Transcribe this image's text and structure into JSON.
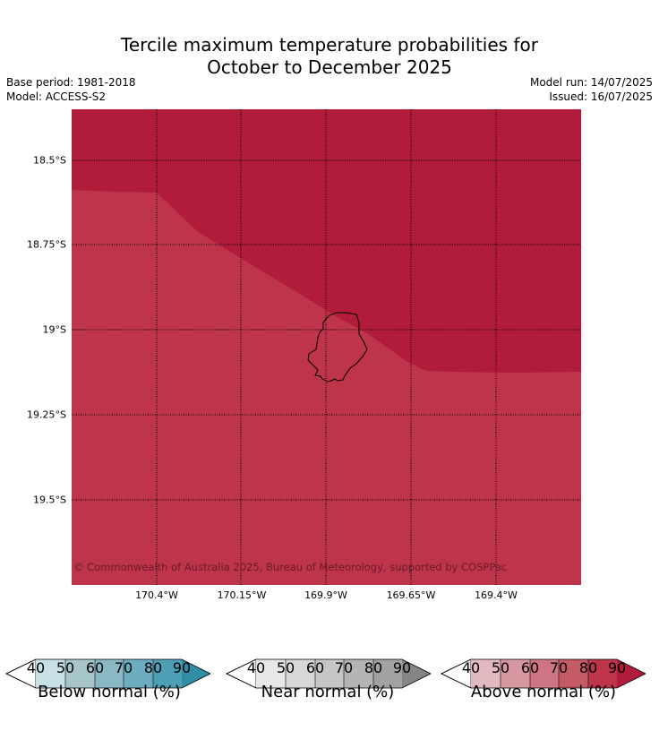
{
  "title_line1": "Tercile maximum temperature probabilities for",
  "title_line2": "October to December 2025",
  "base_period": "Base period: 1981-2018",
  "model": "Model: ACCESS-S2",
  "model_run": "Model run: 14/07/2025",
  "issued": "Issued: 16/07/2025",
  "copyright": "© Commonwealth of Australia 2025, Bureau of Meteorology, supported by COSPPac",
  "lat_labels": [
    "18.5°S",
    "18.75°S",
    "19°S",
    "19.25°S",
    "19.5°S"
  ],
  "lon_labels": [
    "170.4°W",
    "170.15°W",
    "169.9°W",
    "169.65°W",
    "169.4°W"
  ],
  "colors": {
    "above_90": "#b01c3a",
    "above_80": "#bd344b",
    "land_outline": "#000000"
  },
  "map_regions": [
    {
      "category": "Above normal",
      "probability_bin": "90",
      "location": "north-east"
    },
    {
      "category": "Above normal",
      "probability_bin": "80",
      "location": "south-west"
    }
  ],
  "colorbars": [
    {
      "label": "Below normal (%)",
      "ticks": [
        "40",
        "50",
        "60",
        "70",
        "80",
        "90"
      ],
      "colors": [
        "#c7e0e6",
        "#a6c6cc",
        "#8ab9c5",
        "#6caebf",
        "#4d9fb5",
        "#2f8ea6"
      ]
    },
    {
      "label": "Near normal (%)",
      "ticks": [
        "40",
        "50",
        "60",
        "70",
        "80",
        "90"
      ],
      "colors": [
        "#e7e7e7",
        "#d7d7d7",
        "#c6c6c6",
        "#b4b4b4",
        "#a2a2a2",
        "#858585"
      ]
    },
    {
      "label": "Above normal (%)",
      "ticks": [
        "40",
        "50",
        "60",
        "70",
        "80",
        "90"
      ],
      "colors": [
        "#e2b9be",
        "#d7979f",
        "#cd7582",
        "#c55a67",
        "#bd344b",
        "#b01c3a"
      ]
    }
  ]
}
